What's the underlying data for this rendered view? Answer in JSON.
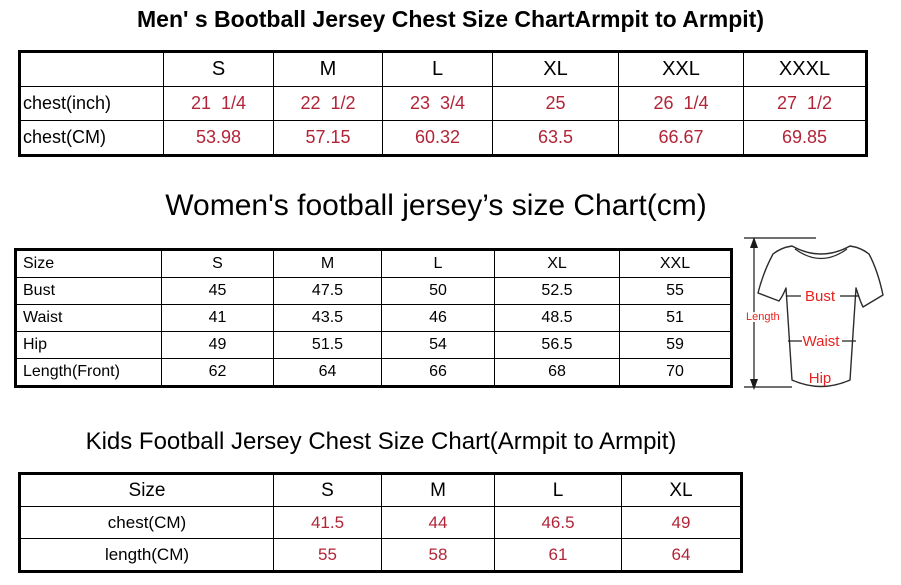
{
  "colors": {
    "value_red": "#b22437",
    "diagram_red": "#e8231f",
    "border_black": "#000000"
  },
  "men_chart": {
    "title": "Men' s Bootball Jersey Chest Size ChartArmpit to Armpit)",
    "table": {
      "header": [
        "",
        "S",
        "M",
        "L",
        "XL",
        "XXL",
        "XXXL"
      ],
      "rows": [
        {
          "label": "chest(inch)",
          "values": [
            "21  1/4",
            "22  1/2",
            "23  3/4",
            "25",
            "26  1/4",
            "27  1/2"
          ]
        },
        {
          "label": "chest(CM)",
          "values": [
            "53.98",
            "57.15",
            "60.32",
            "63.5",
            "66.67",
            "69.85"
          ]
        }
      ]
    }
  },
  "women_chart": {
    "title": "Women's football jersey’s size Chart(cm)",
    "table": {
      "header": [
        "Size",
        "S",
        "M",
        "L",
        "XL",
        "XXL"
      ],
      "rows": [
        {
          "label": "Bust",
          "values": [
            "45",
            "47.5",
            "50",
            "52.5",
            "55"
          ]
        },
        {
          "label": "Waist",
          "values": [
            "41",
            "43.5",
            "46",
            "48.5",
            "51"
          ]
        },
        {
          "label": "Hip",
          "values": [
            "49",
            "51.5",
            "54",
            "56.5",
            "59"
          ]
        },
        {
          "label": "Length(Front)",
          "values": [
            "62",
            "64",
            "66",
            "68",
            "70"
          ]
        }
      ]
    },
    "diagram": {
      "length_label": "Length",
      "bust_label": "Bust",
      "waist_label": "Waist",
      "hip_label": "Hip"
    }
  },
  "kids_chart": {
    "title": "Kids Football Jersey Chest Size Chart(Armpit to Armpit)",
    "table": {
      "header": [
        "Size",
        "S",
        "M",
        "L",
        "XL"
      ],
      "rows": [
        {
          "label": "chest(CM)",
          "values": [
            "41.5",
            "44",
            "46.5",
            "49"
          ]
        },
        {
          "label": "length(CM)",
          "values": [
            "55",
            "58",
            "61",
            "64"
          ]
        }
      ]
    }
  }
}
